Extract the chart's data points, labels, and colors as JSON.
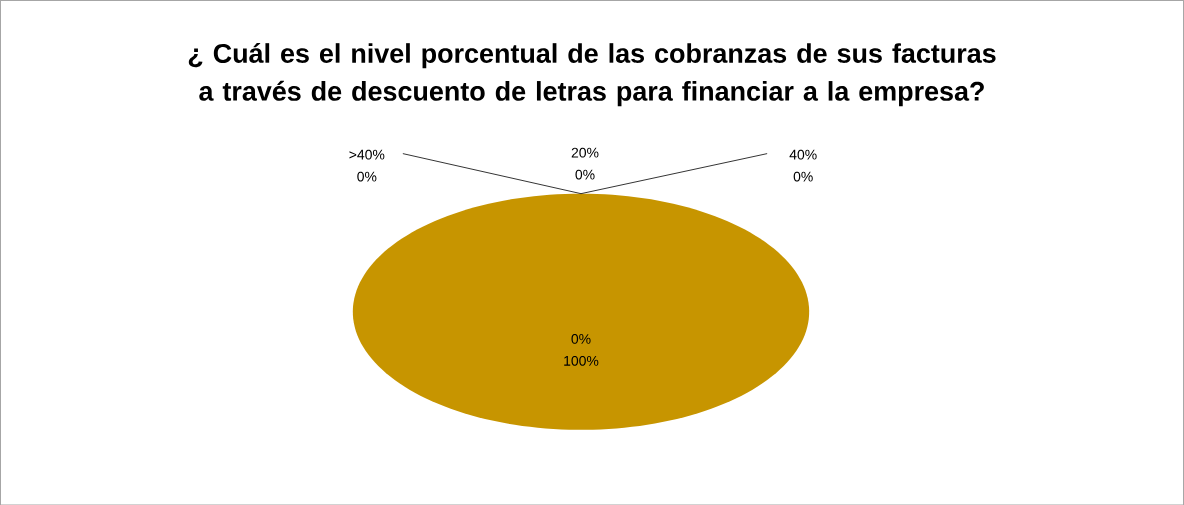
{
  "chart_data": {
    "type": "pie",
    "title": "¿ Cuál es el nivel porcentual de las cobranzas de sus facturas a través de descuento de letras para financiar a la  empresa?",
    "categories": [
      "0%",
      "20%",
      "40%",
      ">40%"
    ],
    "values": [
      100,
      0,
      0,
      0
    ],
    "value_labels": [
      "100%",
      "0%",
      "0%",
      "0%"
    ],
    "colors": [
      "#c79500",
      "#4f81bd",
      "#9bbb59",
      "#8064a2"
    ]
  }
}
